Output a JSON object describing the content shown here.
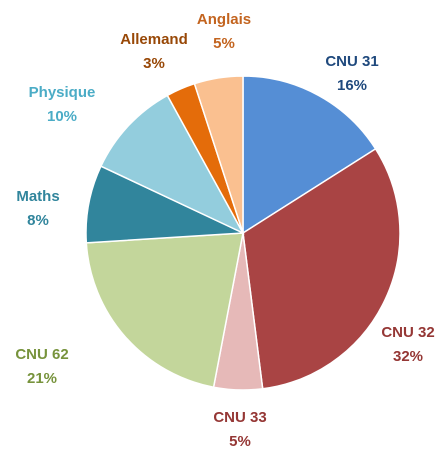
{
  "chart_data": {
    "type": "pie",
    "categories": [
      "CNU 31",
      "CNU 32",
      "CNU 33",
      "CNU 62",
      "Maths",
      "Physique",
      "Allemand",
      "Anglais"
    ],
    "values": [
      16,
      32,
      5,
      21,
      8,
      10,
      3,
      5
    ],
    "value_labels": [
      "16%",
      "32%",
      "5%",
      "21%",
      "8%",
      "10%",
      "3%",
      "5%"
    ],
    "colors": [
      "#558ed5",
      "#a94444",
      "#e6b9b8",
      "#c3d69b",
      "#31859c",
      "#93cddd",
      "#e46c0a",
      "#fac090"
    ],
    "label_colors": [
      "#1f497d",
      "#953735",
      "#953735",
      "#77933c",
      "#31859c",
      "#4bacc6",
      "#984807",
      "#c3641f"
    ]
  }
}
